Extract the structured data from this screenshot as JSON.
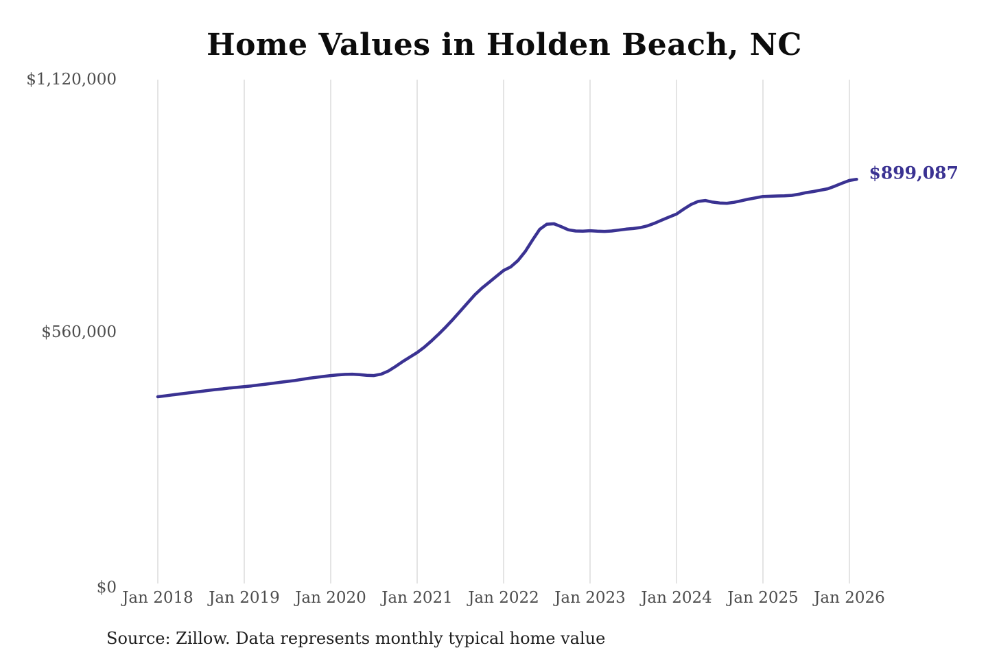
{
  "chart_data": {
    "type": "line",
    "title": "Home Values in Holden Beach, NC",
    "source_note": "Source: Zillow. Data represents monthly typical home value",
    "end_label": "$899,087",
    "latest_value": 899087,
    "line_color": "#3a3292",
    "grid_color": "#cacaca",
    "tick_color": "#4d4d4d",
    "ylim": [
      0,
      1120000
    ],
    "grid": "vertical-only",
    "legend": "none",
    "y_ticks": [
      {
        "value": 0,
        "label": "$0"
      },
      {
        "value": 560000,
        "label": "$560,000"
      },
      {
        "value": 1120000,
        "label": "$1,120,000"
      }
    ],
    "x_ticks": [
      "Jan 2018",
      "Jan 2019",
      "Jan 2020",
      "Jan 2021",
      "Jan 2022",
      "Jan 2023",
      "Jan 2024",
      "Jan 2025",
      "Jan 2026"
    ],
    "series": [
      {
        "name": "Monthly typical home value",
        "start": "Jan 2018",
        "end": "Feb 2026",
        "interval": "monthly",
        "values": [
          417000,
          419000,
          421000,
          423000,
          425000,
          427000,
          429000,
          431000,
          433000,
          434500,
          436500,
          438000,
          439500,
          441000,
          443000,
          445000,
          447000,
          449000,
          451000,
          453000,
          455500,
          458000,
          460000,
          462000,
          464000,
          465500,
          466500,
          467000,
          466000,
          464500,
          464000,
          467000,
          474000,
          484000,
          495000,
          505000,
          515000,
          527000,
          541000,
          556000,
          572000,
          589000,
          607000,
          625000,
          643000,
          658000,
          671000,
          684000,
          697000,
          705000,
          719000,
          739000,
          764000,
          788000,
          799500,
          800500,
          794000,
          787000,
          784500,
          784000,
          785000,
          784000,
          783500,
          784500,
          786500,
          788500,
          790000,
          792000,
          796000,
          802000,
          809000,
          815500,
          822000,
          833000,
          843000,
          850000,
          852000,
          848500,
          846500,
          846000,
          848000,
          851500,
          855000,
          858000,
          861000,
          861500,
          862000,
          862500,
          863500,
          866000,
          869500,
          872000,
          875000,
          878000,
          884000,
          890500,
          896500,
          899087
        ]
      }
    ]
  }
}
